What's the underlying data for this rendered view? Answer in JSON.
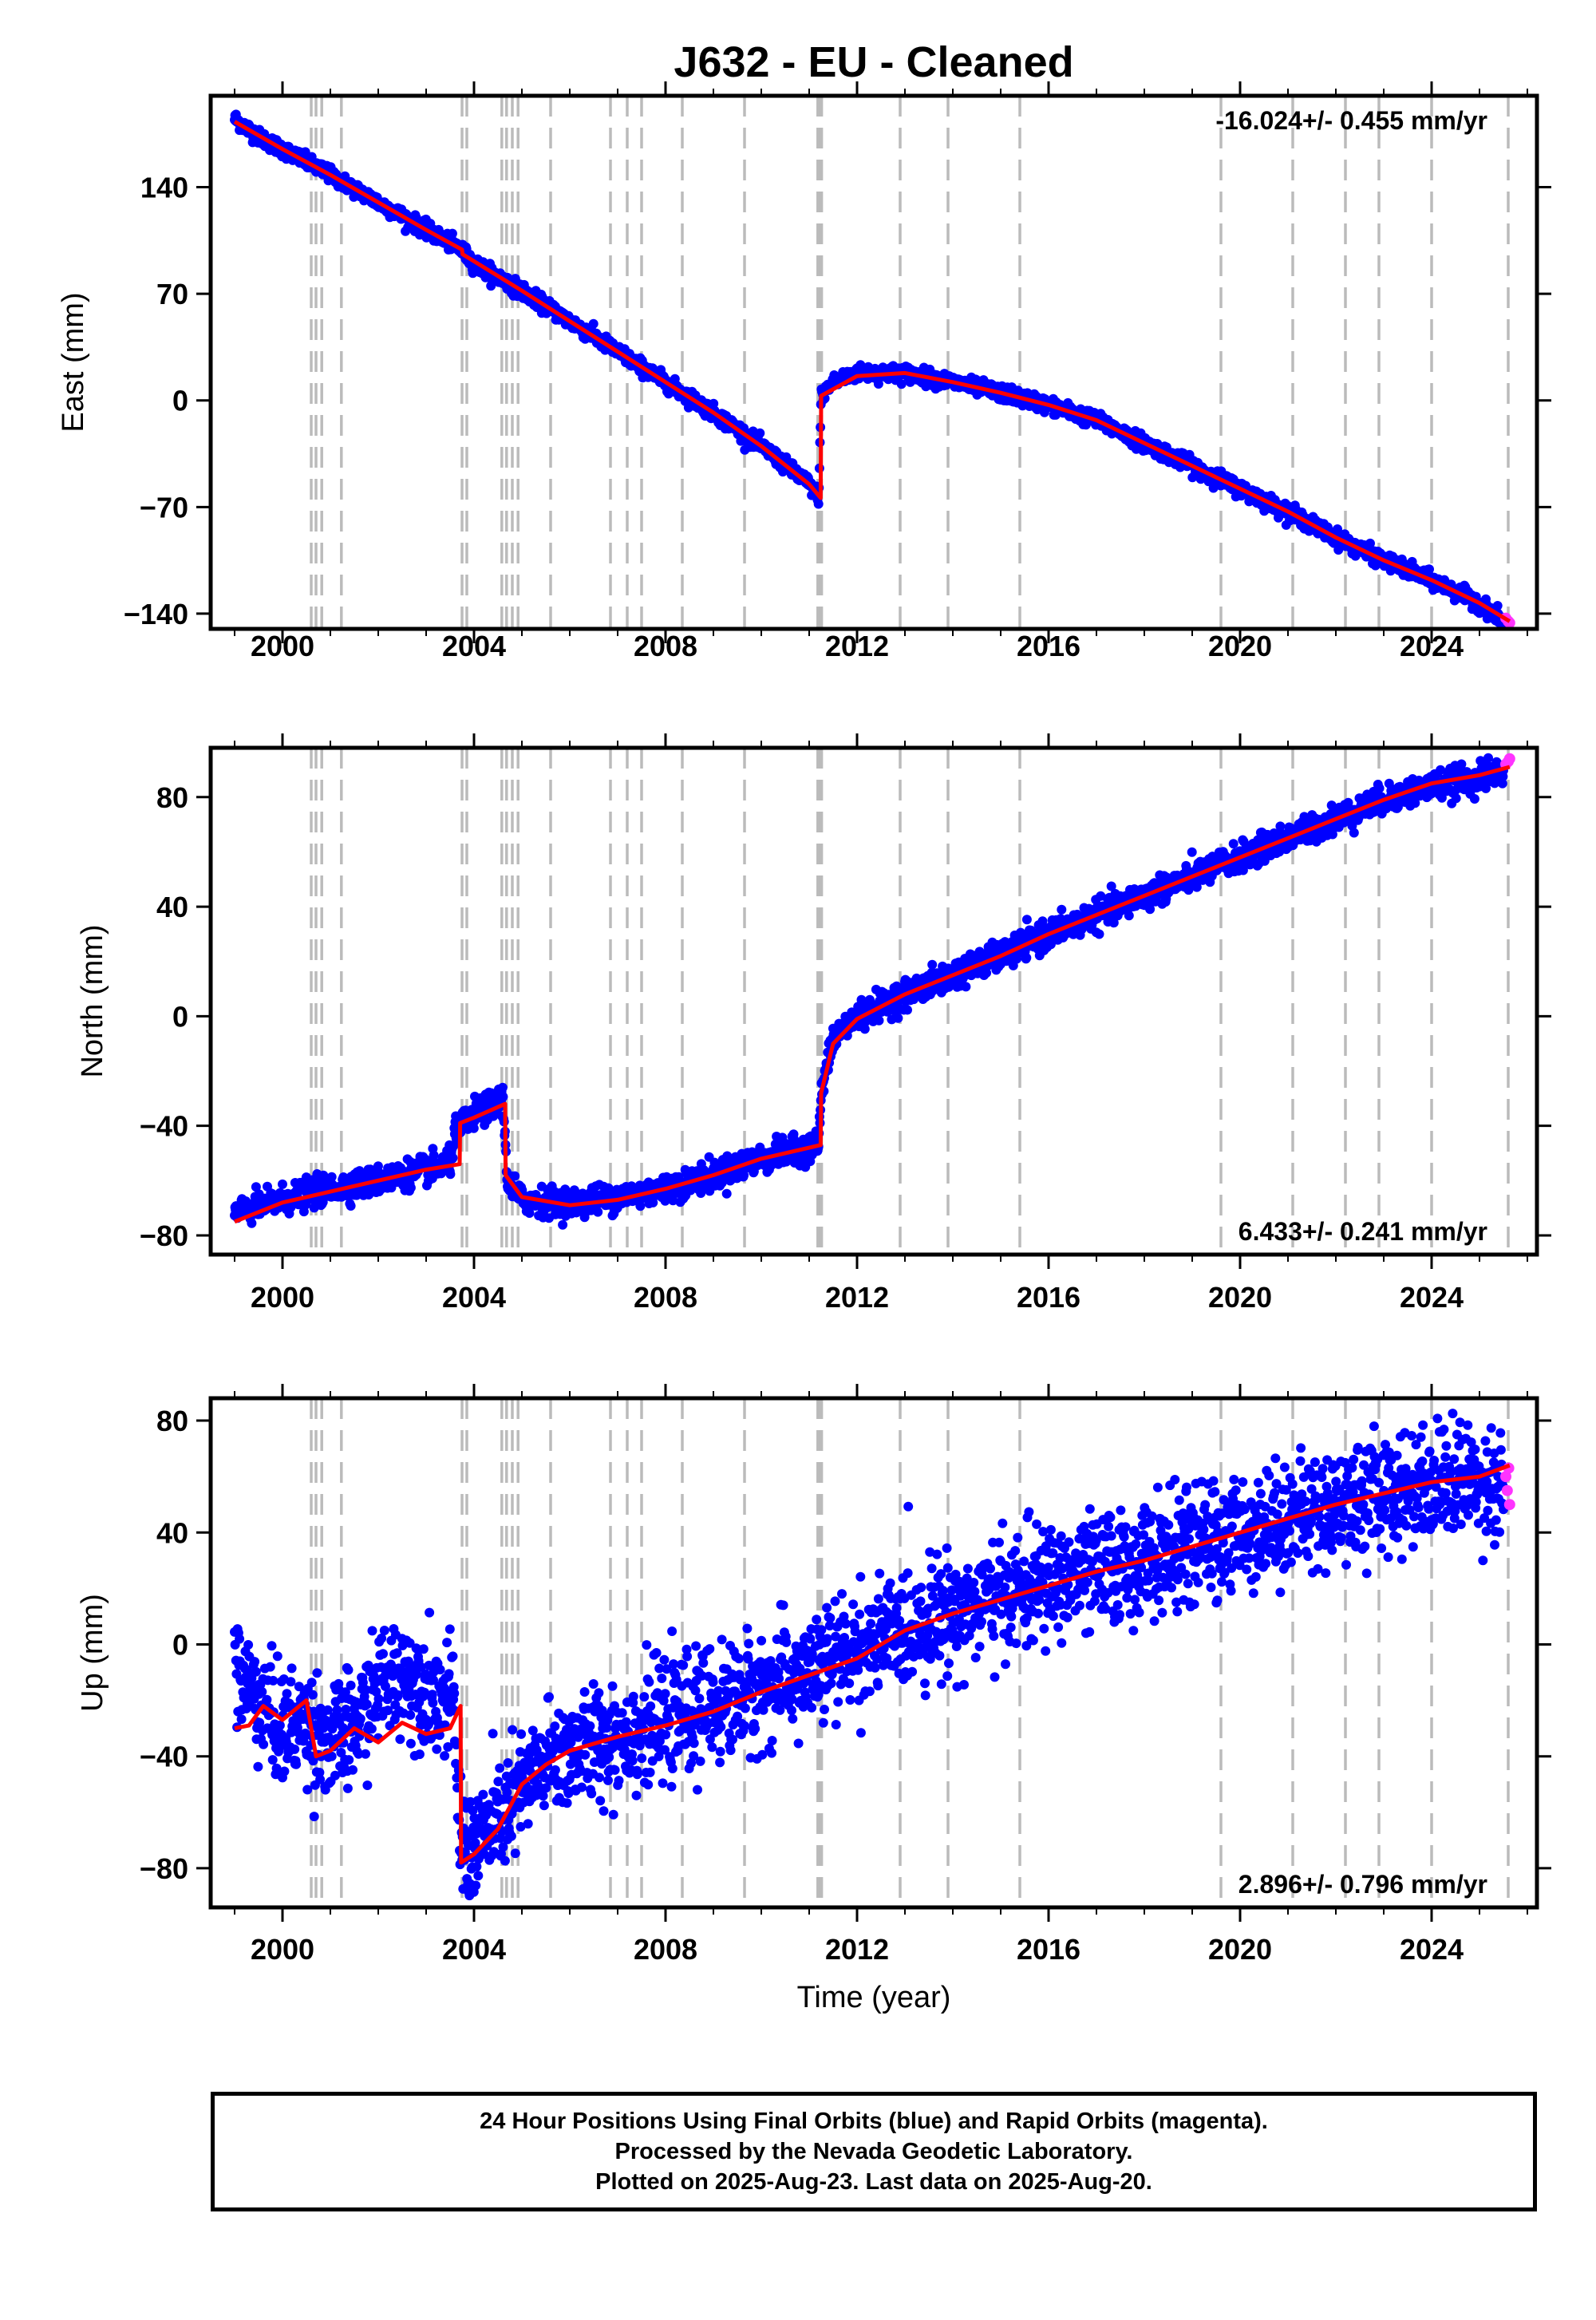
{
  "colors": {
    "final_orbits": "#0000ff",
    "rapid_orbits": "#ff33ff",
    "model": "#ff0000",
    "event_lines": "#bbbbbb",
    "frame": "#000000"
  },
  "chart_data": [
    {
      "type": "scatter",
      "panel": "east",
      "title": "J632  - EU - Cleaned",
      "xlabel": "",
      "ylabel": "East (mm)",
      "xlim": [
        1998.5,
        2026.2
      ],
      "ylim": [
        -150,
        200
      ],
      "xticks": [
        2000,
        2004,
        2008,
        2012,
        2016,
        2020,
        2024
      ],
      "yticks": [
        140,
        70,
        0,
        -70,
        -140
      ],
      "ytick_labels": [
        "140",
        "70",
        "0",
        "−70",
        "−140"
      ],
      "rate_label": "-16.024+/- 0.455 mm/yr",
      "rate_position": "top-right",
      "grid": false,
      "noise_mm": 2.5,
      "series": [
        {
          "name": "Final Orbits (blue)",
          "x": [
            1999.0,
            1999.5,
            2000.0,
            2001.0,
            2002.0,
            2003.0,
            2003.7,
            2004.0,
            2005.0,
            2006.0,
            2007.0,
            2008.0,
            2009.0,
            2010.0,
            2011.0,
            2011.2,
            2011.25,
            2011.5,
            2012.0,
            2013.0,
            2014.0,
            2015.0,
            2016.0,
            2017.0,
            2018.0,
            2019.0,
            2020.0,
            2021.0,
            2022.0,
            2023.0,
            2024.0,
            2025.0,
            2025.5
          ],
          "y": [
            185,
            173,
            165,
            148,
            130,
            112,
            100,
            90,
            72,
            52,
            32,
            12,
            -8,
            -30,
            -55,
            -63,
            3,
            12,
            18,
            18,
            12,
            5,
            -3,
            -13,
            -28,
            -43,
            -58,
            -73,
            -90,
            -105,
            -118,
            -133,
            -145
          ]
        },
        {
          "name": "Rapid Orbits (magenta)",
          "x": [
            2025.55,
            2025.6,
            2025.63
          ],
          "y": [
            -143,
            -145,
            -146
          ]
        }
      ],
      "model": {
        "x": [
          1999.0,
          2000.0,
          2001.0,
          2002.0,
          2003.0,
          2003.75,
          2003.76,
          2005.0,
          2006.0,
          2007.0,
          2008.0,
          2009.0,
          2010.0,
          2011.0,
          2011.24,
          2011.25,
          2012.0,
          2013.0,
          2014.0,
          2015.0,
          2016.0,
          2017.0,
          2018.0,
          2019.0,
          2020.0,
          2021.0,
          2022.0,
          2023.0,
          2024.0,
          2025.0,
          2025.63
        ],
        "y": [
          183,
          165,
          148,
          130,
          112,
          99,
          96,
          72,
          52,
          32,
          12,
          -8,
          -30,
          -55,
          -64,
          3,
          16,
          18,
          12,
          5,
          -3,
          -13,
          -28,
          -43,
          -58,
          -73,
          -90,
          -105,
          -118,
          -133,
          -145
        ]
      }
    },
    {
      "type": "scatter",
      "panel": "north",
      "title": "",
      "xlabel": "",
      "ylabel": "North (mm)",
      "xlim": [
        1998.5,
        2026.2
      ],
      "ylim": [
        -87,
        98
      ],
      "xticks": [
        2000,
        2004,
        2008,
        2012,
        2016,
        2020,
        2024
      ],
      "yticks": [
        80,
        40,
        0,
        -40,
        -80
      ],
      "ytick_labels": [
        "80",
        "40",
        "0",
        "−40",
        "−80"
      ],
      "rate_label": "6.433+/- 0.241 mm/yr",
      "rate_position": "bottom-right",
      "grid": false,
      "noise_mm": 2.5,
      "series": [
        {
          "name": "Final Orbits (blue)",
          "x": [
            1999.0,
            2000.0,
            2001.0,
            2002.0,
            2003.0,
            2003.5,
            2003.6,
            2004.0,
            2004.6,
            2004.7,
            2005.0,
            2006.0,
            2007.0,
            2008.0,
            2009.0,
            2010.0,
            2011.0,
            2011.2,
            2011.25,
            2011.5,
            2012.0,
            2013.0,
            2014.0,
            2015.0,
            2016.0,
            2017.0,
            2018.0,
            2019.0,
            2020.0,
            2021.0,
            2022.0,
            2023.0,
            2024.0,
            2025.0,
            2025.5
          ],
          "y": [
            -72,
            -67,
            -63,
            -60,
            -56,
            -54,
            -42,
            -36,
            -30,
            -60,
            -67,
            -68,
            -66,
            -63,
            -58,
            -52,
            -48,
            -46,
            -28,
            -8,
            0,
            8,
            15,
            22,
            30,
            37,
            44,
            51,
            58,
            65,
            72,
            79,
            84,
            87,
            90
          ]
        },
        {
          "name": "Rapid Orbits (magenta)",
          "x": [
            2025.55,
            2025.6,
            2025.63
          ],
          "y": [
            92,
            93,
            94
          ]
        }
      ],
      "model": {
        "x": [
          1999.0,
          2000.0,
          2001.0,
          2002.0,
          2003.0,
          2003.7,
          2003.71,
          2004.0,
          2004.65,
          2004.66,
          2005.0,
          2006.0,
          2007.0,
          2008.0,
          2009.0,
          2010.0,
          2011.0,
          2011.24,
          2011.25,
          2011.5,
          2012.0,
          2013.0,
          2014.0,
          2015.0,
          2016.0,
          2017.0,
          2018.0,
          2019.0,
          2020.0,
          2021.0,
          2022.0,
          2023.0,
          2024.0,
          2025.0,
          2025.63
        ],
        "y": [
          -75,
          -68,
          -64,
          -60,
          -56,
          -54,
          -39,
          -37,
          -32,
          -58,
          -66,
          -69,
          -67,
          -63,
          -58,
          -52,
          -48,
          -47,
          -28,
          -10,
          -1,
          8,
          15,
          22,
          30,
          37,
          44,
          51,
          58,
          65,
          72,
          79,
          85,
          88,
          91
        ]
      }
    },
    {
      "type": "scatter",
      "panel": "up",
      "title": "",
      "xlabel": "Time (year)",
      "ylabel": "Up (mm)",
      "xlim": [
        1998.5,
        2026.2
      ],
      "ylim": [
        -94,
        88
      ],
      "xticks": [
        2000,
        2004,
        2008,
        2012,
        2016,
        2020,
        2024
      ],
      "yticks": [
        80,
        40,
        0,
        -40,
        -80
      ],
      "ytick_labels": [
        "80",
        "40",
        "0",
        "−40",
        "−80"
      ],
      "rate_label": "2.896+/- 0.796 mm/yr",
      "rate_position": "bottom-right",
      "grid": false,
      "noise_mm": 10,
      "series": [
        {
          "name": "Final Orbits (blue)",
          "x": [
            1999.0,
            1999.3,
            1999.7,
            2000.0,
            2000.5,
            2001.0,
            2001.5,
            2002.0,
            2002.5,
            2003.0,
            2003.6,
            2003.7,
            2004.0,
            2004.5,
            2005.0,
            2005.5,
            2006.0,
            2007.0,
            2008.0,
            2009.0,
            2010.0,
            2011.0,
            2012.0,
            2013.0,
            2014.0,
            2015.0,
            2016.0,
            2017.0,
            2018.0,
            2019.0,
            2020.0,
            2021.0,
            2022.0,
            2023.0,
            2024.0,
            2025.0,
            2025.5
          ],
          "y": [
            -10,
            -15,
            -25,
            -30,
            -28,
            -35,
            -30,
            -15,
            -10,
            -15,
            -22,
            -72,
            -72,
            -63,
            -52,
            -42,
            -38,
            -33,
            -28,
            -22,
            -16,
            -10,
            -2,
            6,
            12,
            17,
            22,
            26,
            30,
            35,
            40,
            45,
            50,
            54,
            58,
            60,
            56
          ]
        },
        {
          "name": "Rapid Orbits (magenta)",
          "x": [
            2025.55,
            2025.58,
            2025.61,
            2025.63
          ],
          "y": [
            60,
            55,
            63,
            50
          ]
        }
      ],
      "model": {
        "x": [
          1999.0,
          1999.3,
          1999.6,
          2000.0,
          2000.5,
          2000.7,
          2001.0,
          2001.5,
          2002.0,
          2002.5,
          2003.0,
          2003.5,
          2003.72,
          2003.73,
          2004.0,
          2004.5,
          2005.0,
          2005.5,
          2006.0,
          2007.0,
          2008.0,
          2009.0,
          2010.0,
          2011.0,
          2012.0,
          2013.0,
          2014.0,
          2015.0,
          2016.0,
          2017.0,
          2018.0,
          2019.0,
          2020.0,
          2021.0,
          2022.0,
          2023.0,
          2024.0,
          2025.0,
          2025.63
        ],
        "y": [
          -30,
          -29,
          -22,
          -27,
          -20,
          -40,
          -38,
          -30,
          -35,
          -28,
          -32,
          -30,
          -22,
          -78,
          -75,
          -66,
          -50,
          -43,
          -38,
          -33,
          -29,
          -24,
          -17,
          -11,
          -5,
          5,
          11,
          16,
          21,
          26,
          30,
          35,
          40,
          45,
          50,
          54,
          58,
          60,
          64
        ]
      }
    }
  ],
  "event_lines_years": [
    2000.6,
    2000.7,
    2000.82,
    2001.23,
    2003.75,
    2003.85,
    2004.58,
    2004.68,
    2004.8,
    2004.92,
    2005.6,
    2006.85,
    2007.2,
    2007.5,
    2008.35,
    2009.65,
    2011.18,
    2011.22,
    2011.26,
    2012.9,
    2013.9,
    2015.4,
    2019.6,
    2021.1,
    2022.2,
    2022.9,
    2024.0,
    2025.6
  ],
  "footer": {
    "line1": "24 Hour Positions Using Final Orbits (blue) and Rapid Orbits (magenta).",
    "line2": "Processed by the Nevada Geodetic Laboratory.",
    "line3": "Plotted on 2025-Aug-23. Last data on 2025-Aug-20."
  }
}
